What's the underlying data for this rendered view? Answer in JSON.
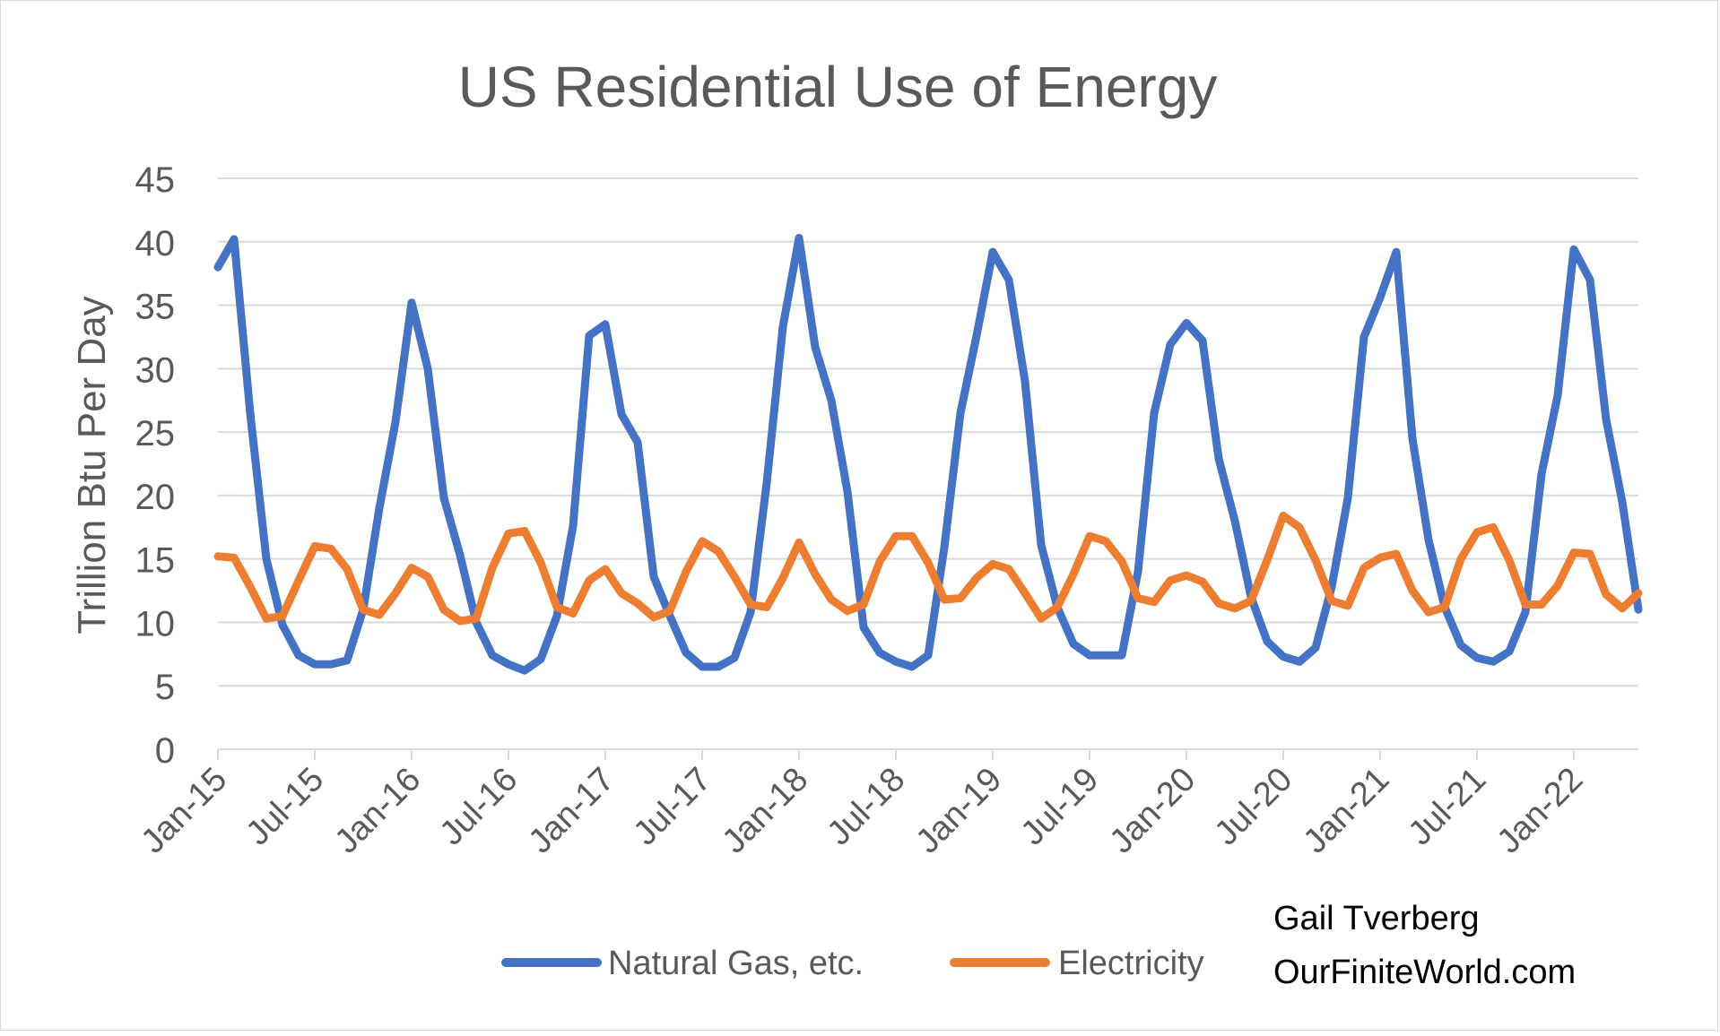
{
  "chart_data": {
    "type": "line",
    "title": "US Residential Use of Energy",
    "ylabel": "Trillion Btu Per Day",
    "xlabel": "",
    "ylim": [
      0,
      45
    ],
    "yticks": [
      0,
      5,
      10,
      15,
      20,
      25,
      30,
      35,
      40,
      45
    ],
    "grid": true,
    "legend_position": "bottom",
    "x_tick_labels": [
      "Jan-15",
      "Jul-15",
      "Jan-16",
      "Jul-16",
      "Jan-17",
      "Jul-17",
      "Jan-18",
      "Jul-18",
      "Jan-19",
      "Jul-19",
      "Jan-20",
      "Jul-20",
      "Jan-21",
      "Jul-21",
      "Jan-22"
    ],
    "x_start": "Jan-15",
    "x_end": "Jun-22",
    "series": [
      {
        "name": "Natural Gas, etc.",
        "color": "#4472C4",
        "values": [
          38.0,
          40.2,
          26.5,
          15.0,
          9.8,
          7.4,
          6.7,
          6.7,
          7.0,
          11.0,
          19.0,
          25.8,
          35.2,
          30.0,
          19.8,
          15.3,
          10.0,
          7.4,
          6.7,
          6.2,
          7.1,
          10.5,
          17.6,
          32.6,
          33.5,
          26.4,
          24.2,
          13.6,
          10.5,
          7.6,
          6.5,
          6.5,
          7.2,
          10.8,
          21.0,
          33.3,
          40.3,
          31.7,
          27.5,
          20.3,
          9.6,
          7.6,
          6.9,
          6.5,
          7.4,
          15.9,
          26.5,
          32.6,
          39.2,
          37.0,
          29.0,
          16.1,
          11.2,
          8.3,
          7.4,
          7.4,
          7.4,
          14.0,
          26.5,
          31.9,
          33.6,
          32.2,
          22.9,
          18.0,
          12.0,
          8.5,
          7.3,
          6.9,
          8.0,
          12.8,
          19.8,
          32.5,
          35.6,
          39.2,
          24.5,
          16.5,
          11.2,
          8.2,
          7.2,
          6.9,
          7.7,
          10.8,
          21.7,
          27.9,
          39.4,
          37.0,
          26.0,
          19.5,
          11.0
        ]
      },
      {
        "name": "Electricity",
        "color": "#ED7D31",
        "values": [
          15.2,
          15.1,
          12.8,
          10.3,
          10.5,
          13.3,
          16.0,
          15.8,
          14.2,
          11.0,
          10.6,
          12.3,
          14.3,
          13.6,
          11.0,
          10.1,
          10.3,
          14.3,
          17.0,
          17.2,
          14.7,
          11.2,
          10.7,
          13.3,
          14.2,
          12.3,
          11.5,
          10.4,
          10.9,
          14.0,
          16.4,
          15.6,
          13.6,
          11.4,
          11.2,
          13.5,
          16.3,
          13.8,
          11.8,
          10.9,
          11.4,
          14.8,
          16.8,
          16.8,
          14.7,
          11.8,
          11.9,
          13.5,
          14.6,
          14.2,
          12.3,
          10.3,
          11.2,
          13.8,
          16.8,
          16.4,
          14.8,
          11.9,
          11.6,
          13.3,
          13.7,
          13.2,
          11.5,
          11.1,
          11.7,
          14.9,
          18.4,
          17.5,
          14.9,
          11.7,
          11.3,
          14.3,
          15.1,
          15.4,
          12.5,
          10.8,
          11.2,
          15.0,
          17.1,
          17.5,
          14.9,
          11.4,
          11.4,
          12.9,
          15.5,
          15.4,
          12.2,
          11.1,
          12.3
        ]
      }
    ]
  },
  "annotation": {
    "line1": "Gail Tverberg",
    "line2": "OurFiniteWorld.com"
  }
}
